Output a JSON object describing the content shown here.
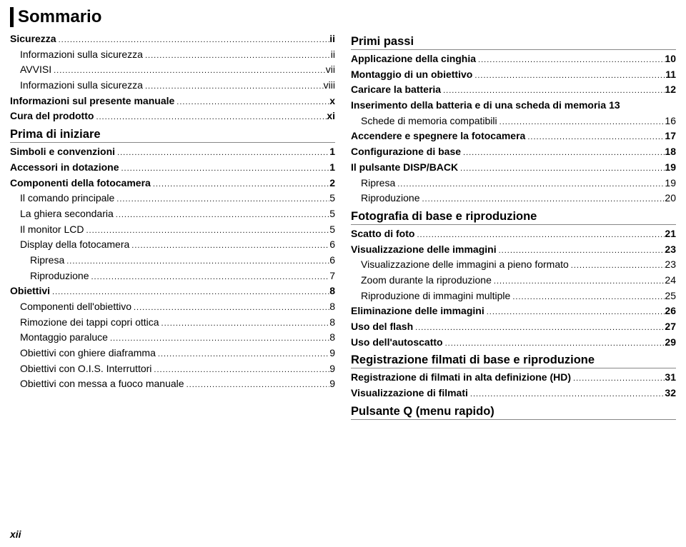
{
  "title": "Sommario",
  "pageNumber": "xii",
  "left": [
    {
      "label": "Sicurezza",
      "page": "ii",
      "bold": true,
      "indent": 0
    },
    {
      "label": "Informazioni sulla sicurezza",
      "page": "ii",
      "indent": 1
    },
    {
      "label": "AVVISI",
      "page": "vii",
      "indent": 1
    },
    {
      "label": "Informazioni sulla sicurezza",
      "page": "viii",
      "indent": 1
    },
    {
      "label": "Informazioni sul presente manuale",
      "page": "x",
      "bold": true,
      "indent": 0
    },
    {
      "label": "Cura del prodotto",
      "page": "xi",
      "bold": true,
      "indent": 0
    },
    {
      "section": "Prima di iniziare"
    },
    {
      "label": "Simboli e convenzioni",
      "page": "1",
      "bold": true,
      "indent": 0
    },
    {
      "label": "Accessori in dotazione",
      "page": "1",
      "bold": true,
      "indent": 0
    },
    {
      "label": "Componenti della fotocamera",
      "page": "2",
      "bold": true,
      "indent": 0
    },
    {
      "label": "Il comando principale",
      "page": "5",
      "indent": 1
    },
    {
      "label": "La ghiera secondaria",
      "page": "5",
      "indent": 1
    },
    {
      "label": "Il monitor LCD",
      "page": "5",
      "indent": 1
    },
    {
      "label": "Display della fotocamera",
      "page": "6",
      "indent": 1
    },
    {
      "label": "Ripresa",
      "page": "6",
      "indent": 2
    },
    {
      "label": "Riproduzione",
      "page": "7",
      "indent": 2
    },
    {
      "label": "Obiettivi",
      "page": "8",
      "bold": true,
      "indent": 0
    },
    {
      "label": "Componenti dell'obiettivo",
      "page": "8",
      "indent": 1
    },
    {
      "label": "Rimozione dei tappi copri ottica",
      "page": "8",
      "indent": 1
    },
    {
      "label": "Montaggio paraluce",
      "page": "8",
      "indent": 1
    },
    {
      "label": "Obiettivi con ghiere diaframma",
      "page": "9",
      "indent": 1
    },
    {
      "label": "Obiettivi con O.I.S. Interruttori",
      "page": "9",
      "indent": 1
    },
    {
      "label": "Obiettivi con messa a fuoco manuale",
      "page": "9",
      "indent": 1
    }
  ],
  "right": [
    {
      "section": "Primi passi"
    },
    {
      "label": "Applicazione della cinghia",
      "page": "10",
      "bold": true,
      "indent": 0
    },
    {
      "label": "Montaggio di un obiettivo",
      "page": "11",
      "bold": true,
      "indent": 0
    },
    {
      "label": "Caricare la batteria",
      "page": "12",
      "bold": true,
      "indent": 0
    },
    {
      "label": "Inserimento della batteria e di una scheda di memoria",
      "page": "13",
      "bold": true,
      "indent": 0,
      "nodots": true
    },
    {
      "label": "Schede di memoria compatibili",
      "page": "16",
      "indent": 1
    },
    {
      "label": "Accendere e spegnere la fotocamera",
      "page": "17",
      "bold": true,
      "indent": 0
    },
    {
      "label": "Configurazione di base",
      "page": "18",
      "bold": true,
      "indent": 0
    },
    {
      "label": "Il pulsante DISP/BACK",
      "page": "19",
      "bold": true,
      "indent": 0
    },
    {
      "label": "Ripresa",
      "page": "19",
      "indent": 1
    },
    {
      "label": "Riproduzione",
      "page": "20",
      "indent": 1
    },
    {
      "section": "Fotografia di base e riproduzione"
    },
    {
      "label": "Scatto di foto",
      "page": "21",
      "bold": true,
      "indent": 0
    },
    {
      "label": "Visualizzazione delle immagini",
      "page": "23",
      "bold": true,
      "indent": 0
    },
    {
      "label": "Visualizzazione delle immagini a pieno formato",
      "page": "23",
      "indent": 1
    },
    {
      "label": "Zoom durante la riproduzione",
      "page": "24",
      "indent": 1
    },
    {
      "label": "Riproduzione di immagini multiple",
      "page": "25",
      "indent": 1
    },
    {
      "label": "Eliminazione delle immagini",
      "page": "26",
      "bold": true,
      "indent": 0
    },
    {
      "label": "Uso del flash",
      "page": "27",
      "bold": true,
      "indent": 0
    },
    {
      "label": "Uso dell'autoscatto",
      "page": "29",
      "bold": true,
      "indent": 0
    },
    {
      "section": "Registrazione filmati di base e riproduzione"
    },
    {
      "label": "Registrazione di filmati in alta definizione (HD)",
      "page": "31",
      "bold": true,
      "indent": 0
    },
    {
      "label": "Visualizzazione di filmati",
      "page": "32",
      "bold": true,
      "indent": 0
    },
    {
      "section": "Pulsante Q (menu rapido)"
    }
  ]
}
